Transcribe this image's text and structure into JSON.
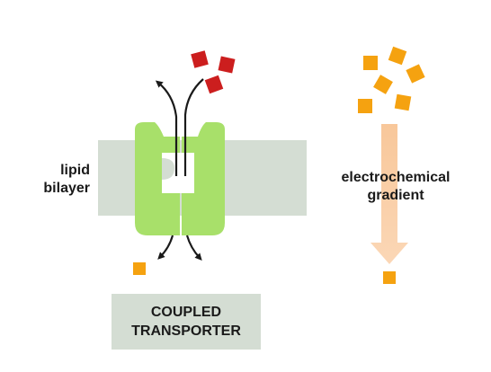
{
  "labels": {
    "lipid_line1": "lipid",
    "lipid_line2": "bilayer",
    "gradient_line1": "electrochemical",
    "gradient_line2": "gradient",
    "caption_line1": "COUPLED",
    "caption_line2": "TRANSPORTER"
  },
  "colors": {
    "membrane": "#d4ddd3",
    "transporter": "#a8e06a",
    "red_molecule": "#cc1e1e",
    "orange_molecule": "#f5a210",
    "gradient_arrow": "#f8c79a",
    "arrow_stroke": "#1a1a1a"
  },
  "icons": {
    "pathway_arrows": "curved-arrow-icon",
    "gradient_arrow": "down-arrow-icon"
  }
}
